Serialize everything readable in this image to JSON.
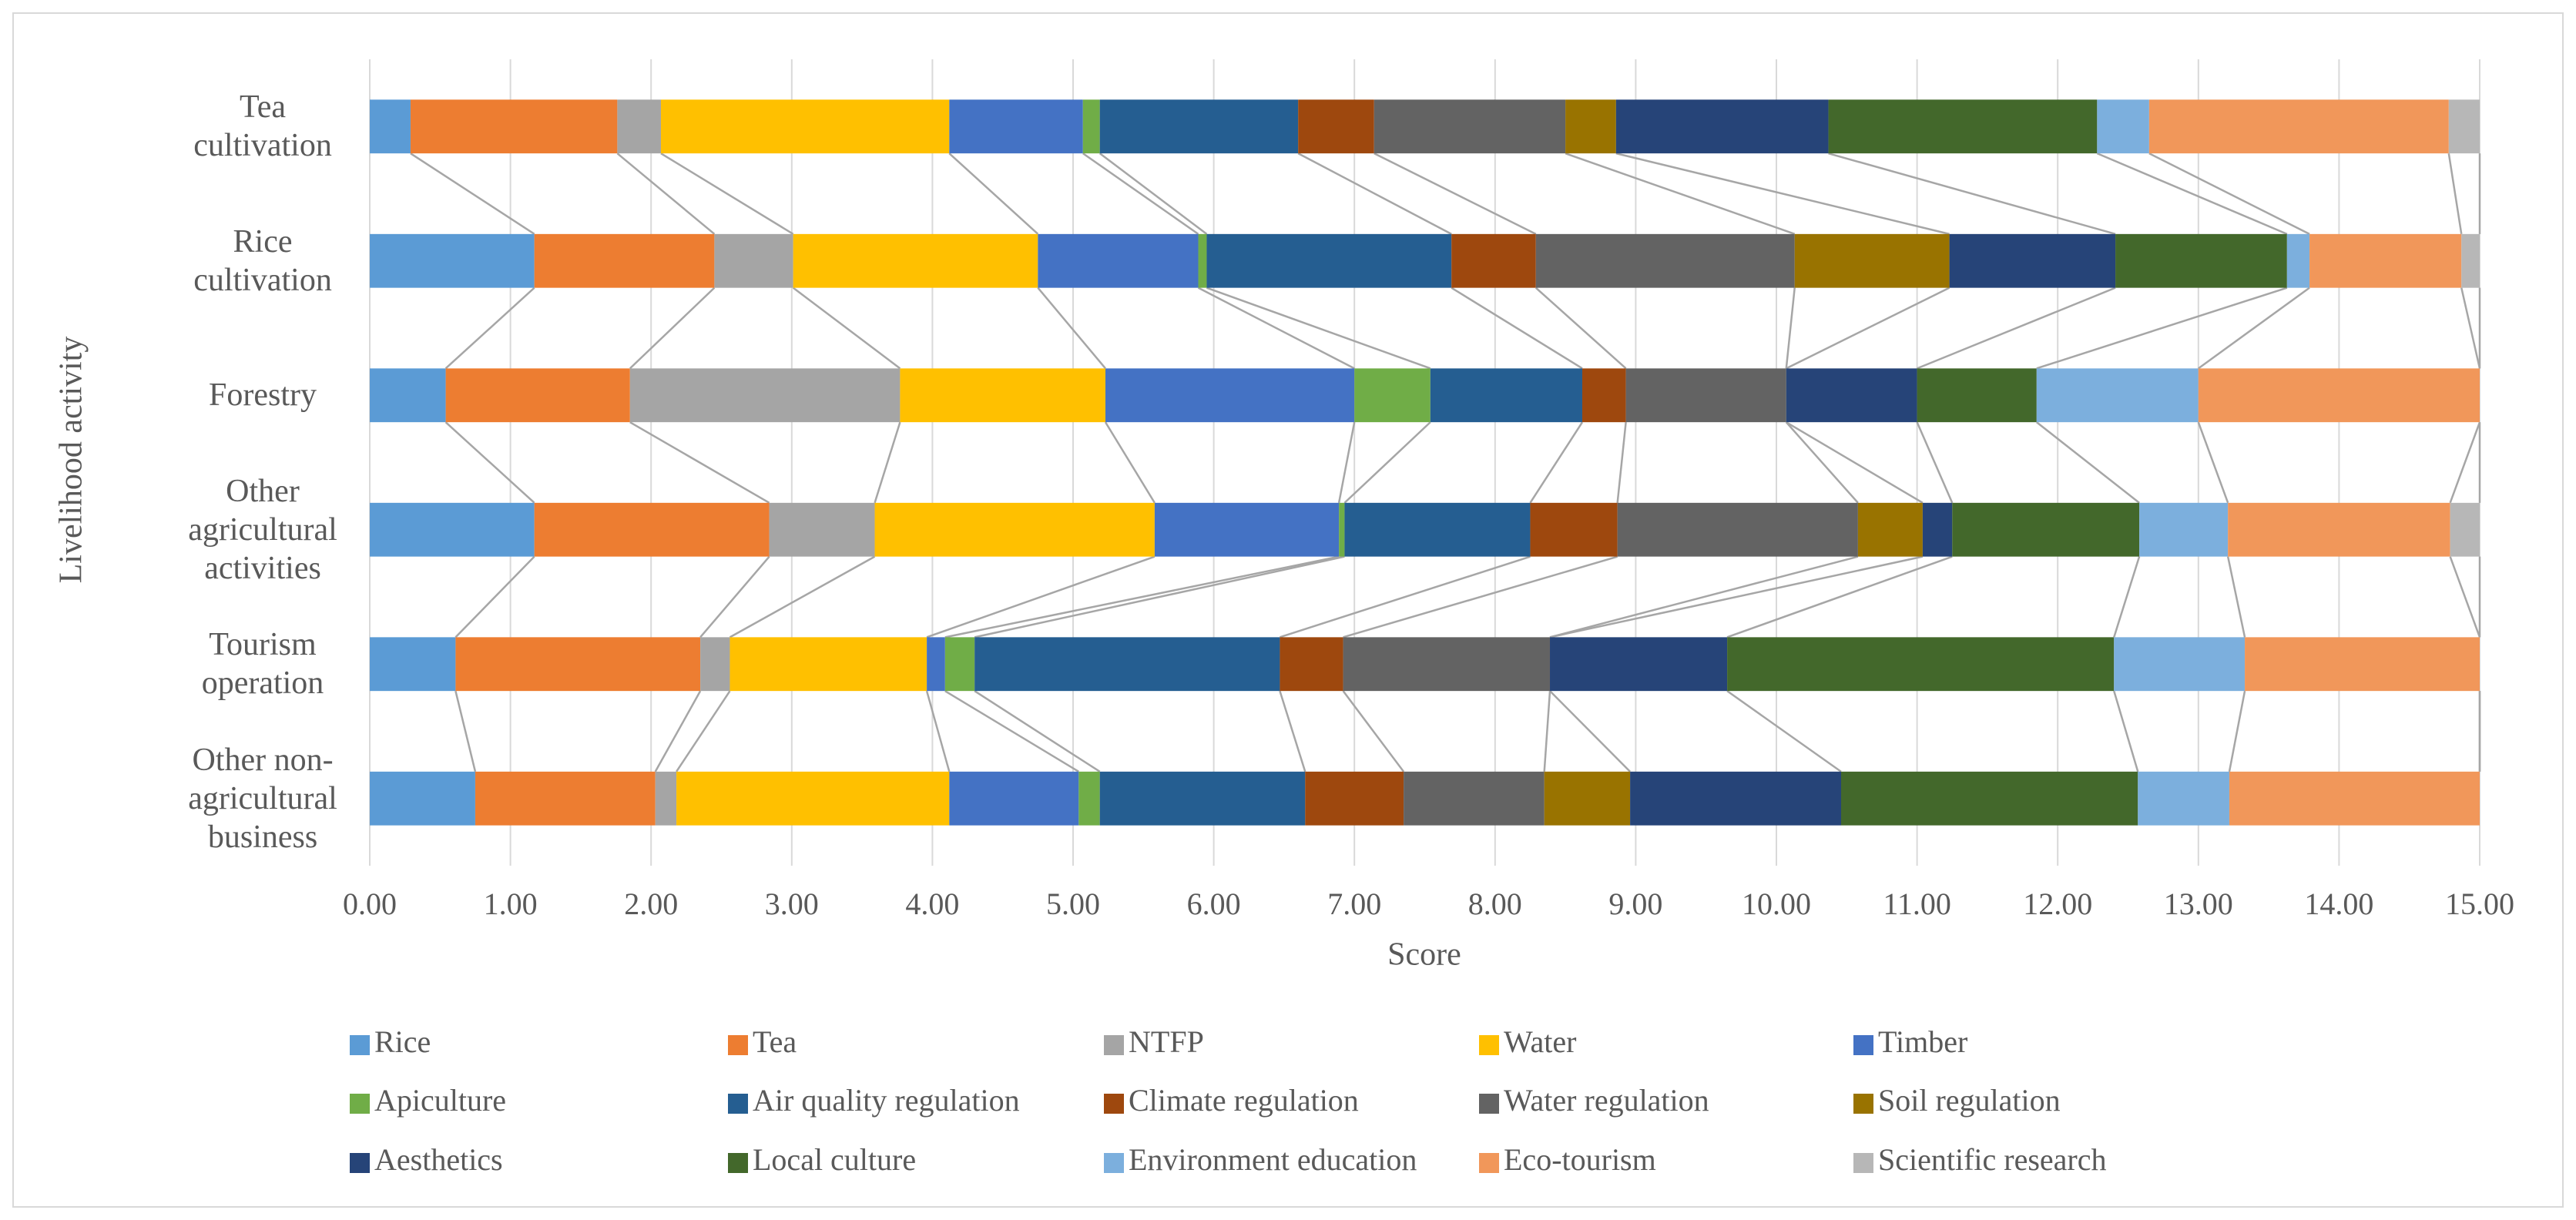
{
  "chart_data": {
    "type": "bar",
    "orientation": "horizontal",
    "stacked": true,
    "x_label": "Score",
    "y_label": "Livelihood activity",
    "categories": [
      "Tea cultivation",
      "Rice cultivation",
      "Forestry",
      "Other agricultural activities",
      "Tourism operation",
      "Other non-agricultural business"
    ],
    "xlim": [
      0,
      15
    ],
    "xticks": [
      {
        "value": 0,
        "label": "0.00"
      },
      {
        "value": 1,
        "label": "1.00"
      },
      {
        "value": 2,
        "label": "2.00"
      },
      {
        "value": 3,
        "label": "3.00"
      },
      {
        "value": 4,
        "label": "4.00"
      },
      {
        "value": 5,
        "label": "5.00"
      },
      {
        "value": 6,
        "label": "6.00"
      },
      {
        "value": 7,
        "label": "7.00"
      },
      {
        "value": 8,
        "label": "8.00"
      },
      {
        "value": 9,
        "label": "9.00"
      },
      {
        "value": 10,
        "label": "10.00"
      },
      {
        "value": 11,
        "label": "11.00"
      },
      {
        "value": 12,
        "label": "12.00"
      },
      {
        "value": 13,
        "label": "13.00"
      },
      {
        "value": 14,
        "label": "14.00"
      },
      {
        "value": 15,
        "label": "15.00"
      }
    ],
    "grid": true,
    "legend": "bottom",
    "series": [
      {
        "name": "Rice",
        "color": "#5b9bd5",
        "values": [
          0.29,
          1.17,
          0.54,
          1.17,
          0.61,
          0.75
        ]
      },
      {
        "name": "Tea",
        "color": "#ed7d31",
        "values": [
          1.47,
          1.28,
          1.31,
          1.67,
          1.74,
          1.28
        ]
      },
      {
        "name": "NTFP",
        "color": "#a5a5a5",
        "values": [
          0.31,
          0.56,
          1.92,
          0.75,
          0.21,
          0.15
        ]
      },
      {
        "name": "Water",
        "color": "#ffc000",
        "values": [
          2.05,
          1.74,
          1.46,
          1.99,
          1.4,
          1.94
        ]
      },
      {
        "name": "Timber",
        "color": "#4472c4",
        "values": [
          0.95,
          1.14,
          1.77,
          1.31,
          0.13,
          0.92
        ]
      },
      {
        "name": "Apiculture",
        "color": "#70ad47",
        "values": [
          0.12,
          0.06,
          0.54,
          0.04,
          0.21,
          0.15
        ]
      },
      {
        "name": "Air quality regulation",
        "color": "#255e91",
        "values": [
          1.41,
          1.74,
          1.08,
          1.32,
          2.17,
          1.46
        ]
      },
      {
        "name": "Climate regulation",
        "color": "#9e480e",
        "values": [
          0.54,
          0.6,
          0.31,
          0.62,
          0.45,
          0.7
        ]
      },
      {
        "name": "Water regulation",
        "color": "#636363",
        "values": [
          1.36,
          1.84,
          1.14,
          1.71,
          1.47,
          1.0
        ]
      },
      {
        "name": "Soil regulation",
        "color": "#997300",
        "values": [
          0.36,
          1.1,
          0,
          0.46,
          0,
          0.61
        ]
      },
      {
        "name": "Aesthetics",
        "color": "#264478",
        "values": [
          1.51,
          1.18,
          0.93,
          0.21,
          1.26,
          1.5
        ]
      },
      {
        "name": "Local culture",
        "color": "#43682b",
        "values": [
          1.91,
          1.22,
          0.85,
          1.33,
          2.75,
          2.11
        ]
      },
      {
        "name": "Environment education",
        "color": "#7cafdd",
        "values": [
          0.37,
          0.16,
          1.15,
          0.63,
          0.93,
          0.65
        ]
      },
      {
        "name": "Eco-tourism",
        "color": "#f1975a",
        "values": [
          2.13,
          1.08,
          2.0,
          1.58,
          1.67,
          1.78
        ]
      },
      {
        "name": "Scientific research",
        "color": "#b7b7b7",
        "values": [
          0.22,
          0.13,
          0,
          0.21,
          0,
          0
        ]
      }
    ]
  }
}
